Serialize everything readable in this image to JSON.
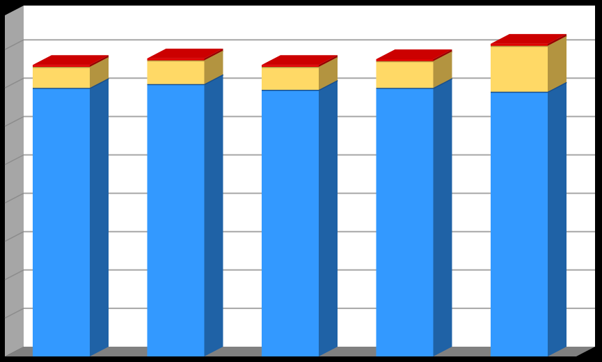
{
  "chart_data": {
    "type": "bar",
    "stacked": true,
    "three_d": true,
    "title": "",
    "xlabel": "",
    "ylabel": "",
    "grid": true,
    "legend": "none",
    "ylim": [
      0,
      9
    ],
    "categories": [
      "",
      "",
      "",
      "",
      ""
    ],
    "series": [
      {
        "values": [
          7.0,
          7.1,
          6.95,
          7.0,
          6.9
        ],
        "colors": {
          "front": "#3399FF",
          "side": "#1F62A6",
          "top": "#1A4F8A"
        }
      },
      {
        "values": [
          0.55,
          0.62,
          0.6,
          0.7,
          1.2
        ],
        "colors": {
          "front": "#FFD966",
          "side": "#B39440",
          "top": "#B39440"
        }
      },
      {
        "values": [
          0.05,
          0.05,
          0.05,
          0.05,
          0.05
        ],
        "colors": {
          "front": "#E00000",
          "side": "#990000",
          "top": "#CC0000"
        }
      }
    ]
  },
  "colors": {
    "background": "#000000",
    "plot_back": "#FFFFFF",
    "side_wall": "#A6A6A6",
    "floor": "#808080",
    "gridline": "#A6A6A6"
  }
}
